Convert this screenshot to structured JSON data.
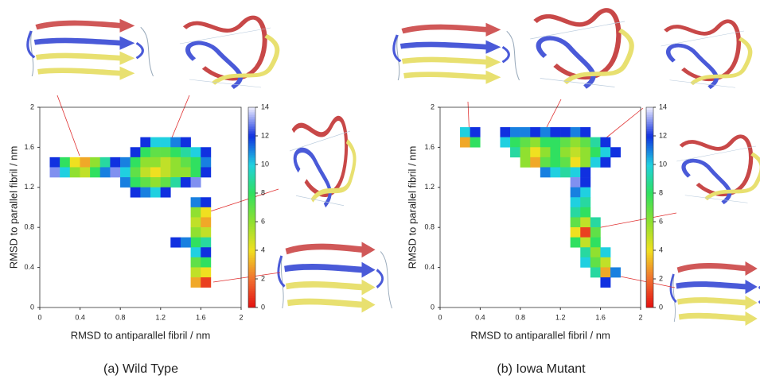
{
  "chart_data": [
    {
      "type": "heatmap",
      "caption": "(a) Wild Type",
      "xlabel": "RMSD to antiparallel fibril / nm",
      "ylabel": "RMSD to parallel fibril / nm",
      "xlim": [
        0,
        2
      ],
      "ylim": [
        0,
        2
      ],
      "xticks": [
        0,
        0.4,
        0.8,
        1.2,
        1.6,
        2
      ],
      "yticks": [
        0,
        0.4,
        0.8,
        1.2,
        1.6,
        2
      ],
      "colorbar": {
        "lim": [
          0,
          14
        ],
        "ticks": [
          0,
          2,
          4,
          6,
          8,
          10,
          12,
          14
        ]
      },
      "x": [
        0.15,
        0.25,
        0.35,
        0.45,
        0.55,
        0.65,
        0.75,
        0.15,
        0.25,
        0.35,
        0.45,
        0.55,
        0.65,
        0.75,
        1.05,
        1.15,
        1.25,
        1.35,
        1.45,
        0.95,
        1.05,
        1.15,
        1.25,
        1.35,
        1.45,
        1.55,
        1.65,
        0.85,
        0.95,
        1.05,
        1.15,
        1.25,
        1.35,
        1.45,
        1.55,
        1.65,
        0.85,
        0.95,
        1.05,
        1.15,
        1.25,
        1.35,
        1.45,
        1.55,
        1.65,
        0.85,
        0.95,
        1.05,
        1.15,
        1.25,
        1.35,
        1.45,
        1.55,
        0.95,
        1.05,
        1.15,
        1.25,
        1.55,
        1.65,
        1.55,
        1.65,
        1.55,
        1.65,
        1.55,
        1.65,
        1.55,
        1.65,
        1.35,
        1.45,
        1.55,
        1.65,
        1.55,
        1.65,
        1.55,
        1.65,
        1.55,
        1.65
      ],
      "y": [
        1.45,
        1.45,
        1.45,
        1.45,
        1.45,
        1.45,
        1.45,
        1.35,
        1.35,
        1.35,
        1.35,
        1.35,
        1.35,
        1.35,
        1.65,
        1.65,
        1.65,
        1.65,
        1.65,
        1.55,
        1.55,
        1.55,
        1.55,
        1.55,
        1.55,
        1.55,
        1.55,
        1.45,
        1.45,
        1.45,
        1.45,
        1.45,
        1.45,
        1.45,
        1.45,
        1.45,
        1.35,
        1.35,
        1.35,
        1.35,
        1.35,
        1.35,
        1.35,
        1.35,
        1.35,
        1.25,
        1.25,
        1.25,
        1.25,
        1.25,
        1.25,
        1.25,
        1.25,
        1.15,
        1.15,
        1.15,
        1.15,
        1.05,
        1.05,
        0.95,
        0.95,
        0.85,
        0.85,
        0.75,
        0.75,
        0.65,
        0.65,
        0.65,
        0.65,
        0.55,
        0.55,
        0.45,
        0.45,
        0.35,
        0.35,
        0.25,
        0.25
      ],
      "values": [
        12,
        8,
        4,
        3,
        6,
        9,
        12,
        13,
        10,
        6,
        5,
        8,
        11,
        13,
        12,
        10,
        10,
        11,
        12,
        12,
        8,
        7,
        7,
        8,
        9,
        10,
        12,
        11,
        8,
        6,
        6,
        5,
        6,
        7,
        8,
        11,
        10,
        7,
        5,
        4,
        5,
        6,
        6,
        8,
        12,
        11,
        8,
        7,
        6,
        7,
        9,
        12,
        13,
        12,
        11,
        10,
        12,
        11,
        12,
        6,
        4,
        5,
        3,
        6,
        5,
        8,
        9,
        12,
        11,
        10,
        12,
        7,
        8,
        5,
        4,
        3,
        1
      ]
    },
    {
      "type": "heatmap",
      "caption": "(b) Iowa Mutant",
      "xlabel": "RMSD to antiparallel fibril / nm",
      "ylabel": "RMSD to parallel fibril / nm",
      "xlim": [
        0,
        2
      ],
      "ylim": [
        0,
        2
      ],
      "xticks": [
        0,
        0.4,
        0.8,
        1.2,
        1.6,
        2
      ],
      "yticks": [
        0,
        0.4,
        0.8,
        1.2,
        1.6,
        2
      ],
      "colorbar": {
        "lim": [
          0,
          14
        ],
        "ticks": [
          0,
          2,
          4,
          6,
          8,
          10,
          12,
          14
        ]
      },
      "x": [
        0.25,
        0.35,
        0.25,
        0.35,
        0.65,
        0.75,
        0.85,
        0.95,
        1.05,
        1.15,
        1.25,
        1.35,
        1.45,
        0.65,
        0.75,
        0.85,
        0.95,
        1.05,
        1.15,
        1.25,
        1.35,
        1.45,
        1.55,
        1.65,
        0.75,
        0.85,
        0.95,
        1.05,
        1.15,
        1.25,
        1.35,
        1.45,
        1.55,
        1.65,
        1.75,
        0.85,
        0.95,
        1.05,
        1.15,
        1.25,
        1.35,
        1.45,
        1.55,
        1.65,
        1.05,
        1.15,
        1.25,
        1.35,
        1.45,
        1.35,
        1.45,
        1.35,
        1.45,
        1.35,
        1.45,
        1.35,
        1.45,
        1.35,
        1.45,
        1.55,
        1.35,
        1.45,
        1.55,
        1.35,
        1.45,
        1.55,
        1.45,
        1.55,
        1.65,
        1.45,
        1.55,
        1.65,
        1.55,
        1.65,
        1.75,
        1.65
      ],
      "y": [
        1.75,
        1.75,
        1.65,
        1.65,
        1.75,
        1.75,
        1.75,
        1.75,
        1.75,
        1.75,
        1.75,
        1.75,
        1.75,
        1.65,
        1.65,
        1.65,
        1.65,
        1.65,
        1.65,
        1.65,
        1.65,
        1.65,
        1.65,
        1.65,
        1.55,
        1.55,
        1.55,
        1.55,
        1.55,
        1.55,
        1.55,
        1.55,
        1.55,
        1.55,
        1.55,
        1.45,
        1.45,
        1.45,
        1.45,
        1.45,
        1.45,
        1.45,
        1.45,
        1.45,
        1.35,
        1.35,
        1.35,
        1.35,
        1.35,
        1.25,
        1.25,
        1.15,
        1.15,
        1.05,
        1.05,
        0.95,
        0.95,
        0.85,
        0.85,
        0.85,
        0.75,
        0.75,
        0.75,
        0.65,
        0.65,
        0.65,
        0.55,
        0.55,
        0.55,
        0.45,
        0.45,
        0.45,
        0.35,
        0.35,
        0.35,
        0.25
      ],
      "values": [
        10,
        12,
        3,
        8,
        12,
        11,
        11,
        12,
        11,
        12,
        12,
        11,
        12,
        10,
        8,
        7,
        6,
        8,
        8,
        7,
        6,
        7,
        9,
        12,
        9,
        6,
        4,
        6,
        8,
        6,
        5,
        6,
        8,
        10,
        12,
        6,
        3,
        7,
        8,
        7,
        4,
        6,
        10,
        12,
        11,
        10,
        9,
        10,
        12,
        13,
        12,
        11,
        10,
        10,
        9,
        9,
        8,
        7,
        5,
        9,
        4,
        1,
        7,
        8,
        5,
        8,
        9,
        6,
        10,
        10,
        7,
        5,
        9,
        3,
        11,
        12
      ]
    }
  ]
}
